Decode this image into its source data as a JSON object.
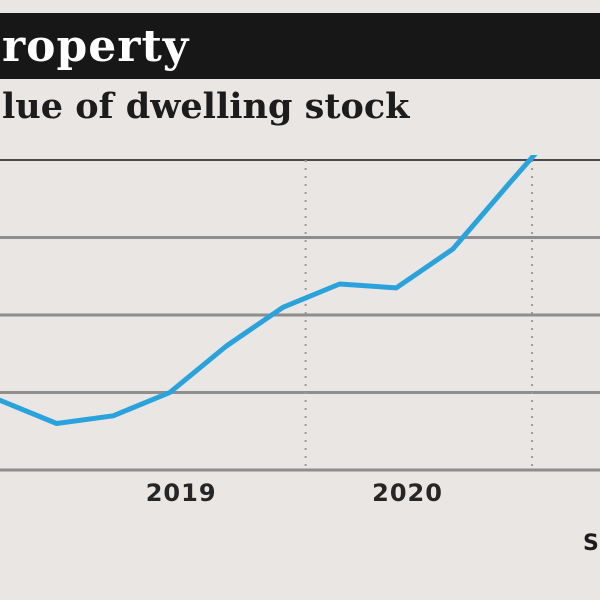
{
  "header": {
    "title": "roperty"
  },
  "subtitle": "lue of dwelling stock",
  "source_fragment": "S",
  "colors": {
    "line": "#2aa3dd",
    "header_bg": "#171717",
    "background": "#eae6e3"
  },
  "chart_data": {
    "type": "line",
    "title": "",
    "xlabel": "",
    "ylabel": "",
    "x_ticks": [
      {
        "label": "2019",
        "x": 2019.0
      },
      {
        "label": "2020",
        "x": 2020.0
      }
    ],
    "xlim": [
      2018.2,
      2020.85
    ],
    "ylim": [
      0,
      4
    ],
    "grid": true,
    "series": [
      {
        "values": [
          {
            "x": 2018.2,
            "y": 0.9
          },
          {
            "x": 2018.45,
            "y": 0.6
          },
          {
            "x": 2018.7,
            "y": 0.7
          },
          {
            "x": 2018.95,
            "y": 1.0
          },
          {
            "x": 2019.2,
            "y": 1.6
          },
          {
            "x": 2019.45,
            "y": 2.1
          },
          {
            "x": 2019.7,
            "y": 2.4
          },
          {
            "x": 2019.95,
            "y": 2.35
          },
          {
            "x": 2020.2,
            "y": 2.85
          },
          {
            "x": 2020.45,
            "y": 3.7
          },
          {
            "x": 2020.6,
            "y": 4.2
          }
        ]
      }
    ]
  }
}
